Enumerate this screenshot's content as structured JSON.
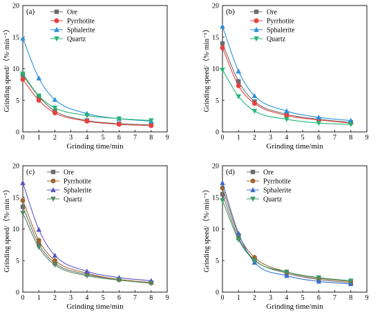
{
  "chart_data": [
    {
      "type": "line",
      "panel_label": "(a)",
      "xlabel": "Grinding time/min",
      "ylabel": "Grinding speed/（%·min⁻¹）",
      "xlim": [
        0,
        9
      ],
      "ylim": [
        0,
        20
      ],
      "xticks": [
        "0",
        "1",
        "2",
        "3",
        "4",
        "5",
        "6",
        "7",
        "8",
        "9"
      ],
      "yticks": [
        "0",
        "5",
        "10",
        "15",
        "20"
      ],
      "legend_position": "top-left",
      "x": [
        0,
        1,
        2,
        4,
        6,
        8
      ],
      "series": [
        {
          "name": "Ore",
          "marker": "square",
          "color": "#6d6d6d",
          "values": [
            9.0,
            5.6,
            3.3,
            1.8,
            1.3,
            1.1
          ]
        },
        {
          "name": "Pyrrhotite",
          "marker": "circle",
          "color": "#e8413b",
          "values": [
            8.3,
            5.0,
            3.0,
            1.7,
            1.2,
            1.0
          ]
        },
        {
          "name": "Sphalerite",
          "marker": "triangle-up",
          "color": "#2b8fd9",
          "values": [
            14.8,
            8.5,
            5.1,
            2.9,
            2.1,
            1.7
          ]
        },
        {
          "name": "Quartz",
          "marker": "triangle-down",
          "color": "#22b573",
          "values": [
            9.2,
            5.7,
            3.8,
            2.6,
            2.1,
            1.8
          ]
        }
      ]
    },
    {
      "type": "line",
      "panel_label": "(b)",
      "xlabel": "Grinding time/min",
      "ylabel": "Grinding speed/（%·min⁻¹）",
      "xlim": [
        0,
        9
      ],
      "ylim": [
        0,
        20
      ],
      "xticks": [
        "0",
        "1",
        "2",
        "3",
        "4",
        "5",
        "6",
        "7",
        "8",
        "9"
      ],
      "yticks": [
        "0",
        "5",
        "10",
        "15",
        "20"
      ],
      "legend_position": "top-right",
      "x": [
        0,
        1,
        2,
        4,
        6,
        8
      ],
      "series": [
        {
          "name": "Ore",
          "marker": "square",
          "color": "#6d6d6d",
          "values": [
            14.0,
            8.0,
            4.8,
            2.8,
            2.0,
            1.5
          ]
        },
        {
          "name": "Pyrrhotite",
          "marker": "circle",
          "color": "#e8413b",
          "values": [
            13.3,
            7.3,
            4.5,
            2.6,
            1.9,
            1.4
          ]
        },
        {
          "name": "Sphalerite",
          "marker": "triangle-up",
          "color": "#2b8fd9",
          "values": [
            16.7,
            9.6,
            5.7,
            3.3,
            2.3,
            1.8
          ]
        },
        {
          "name": "Quartz",
          "marker": "triangle-down",
          "color": "#22b573",
          "values": [
            9.8,
            5.6,
            3.3,
            2.0,
            1.4,
            1.2
          ]
        }
      ]
    },
    {
      "type": "line",
      "panel_label": "(c)",
      "xlabel": "Grinding time/min",
      "ylabel": "Grinding speed/（%·min⁻¹）",
      "xlim": [
        0,
        9
      ],
      "ylim": [
        0,
        20
      ],
      "xticks": [
        "0",
        "1",
        "2",
        "3",
        "4",
        "5",
        "6",
        "7",
        "8",
        "9"
      ],
      "yticks": [
        "0",
        "5",
        "10",
        "15",
        "20"
      ],
      "legend_position": "top-left",
      "x": [
        0,
        1,
        2,
        4,
        6,
        8
      ],
      "series": [
        {
          "name": "Ore",
          "marker": "square",
          "color": "#6d6d6d",
          "values": [
            13.5,
            7.6,
            4.6,
            2.8,
            2.0,
            1.5
          ]
        },
        {
          "name": "Pyrrhotite",
          "marker": "circle",
          "color": "#a0662f",
          "values": [
            14.5,
            8.2,
            5.0,
            3.0,
            2.0,
            1.5
          ]
        },
        {
          "name": "Sphalerite",
          "marker": "triangle-up",
          "color": "#5b55c8",
          "values": [
            17.3,
            9.9,
            5.8,
            3.3,
            2.3,
            1.8
          ]
        },
        {
          "name": "Quartz",
          "marker": "triangle-down",
          "color": "#4f8a5e",
          "values": [
            12.5,
            7.1,
            4.3,
            2.6,
            1.9,
            1.4
          ]
        }
      ]
    },
    {
      "type": "line",
      "panel_label": "(d)",
      "xlabel": "Grinding time/min",
      "ylabel": "Grinding speed/（%·min⁻¹）",
      "xlim": [
        0,
        9
      ],
      "ylim": [
        0,
        20
      ],
      "xticks": [
        "0",
        "1",
        "2",
        "3",
        "4",
        "5",
        "6",
        "7",
        "8",
        "9"
      ],
      "yticks": [
        "0",
        "5",
        "10",
        "15",
        "20"
      ],
      "legend_position": "top-center",
      "x": [
        0,
        1,
        2,
        4,
        6,
        8
      ],
      "series": [
        {
          "name": "Ore",
          "marker": "square",
          "color": "#6d6d6d",
          "values": [
            15.5,
            8.6,
            5.1,
            3.0,
            2.0,
            1.5
          ]
        },
        {
          "name": "Pyrrhotite",
          "marker": "circle",
          "color": "#a0662f",
          "values": [
            16.5,
            9.1,
            5.5,
            3.2,
            2.2,
            1.7
          ]
        },
        {
          "name": "Sphalerite",
          "marker": "triangle-up",
          "color": "#3b6fd0",
          "values": [
            17.3,
            9.3,
            4.7,
            2.6,
            1.7,
            1.3
          ]
        },
        {
          "name": "Quartz",
          "marker": "triangle-down",
          "color": "#3a9a63",
          "values": [
            14.5,
            8.3,
            5.0,
            3.2,
            2.3,
            1.8
          ]
        }
      ]
    }
  ]
}
